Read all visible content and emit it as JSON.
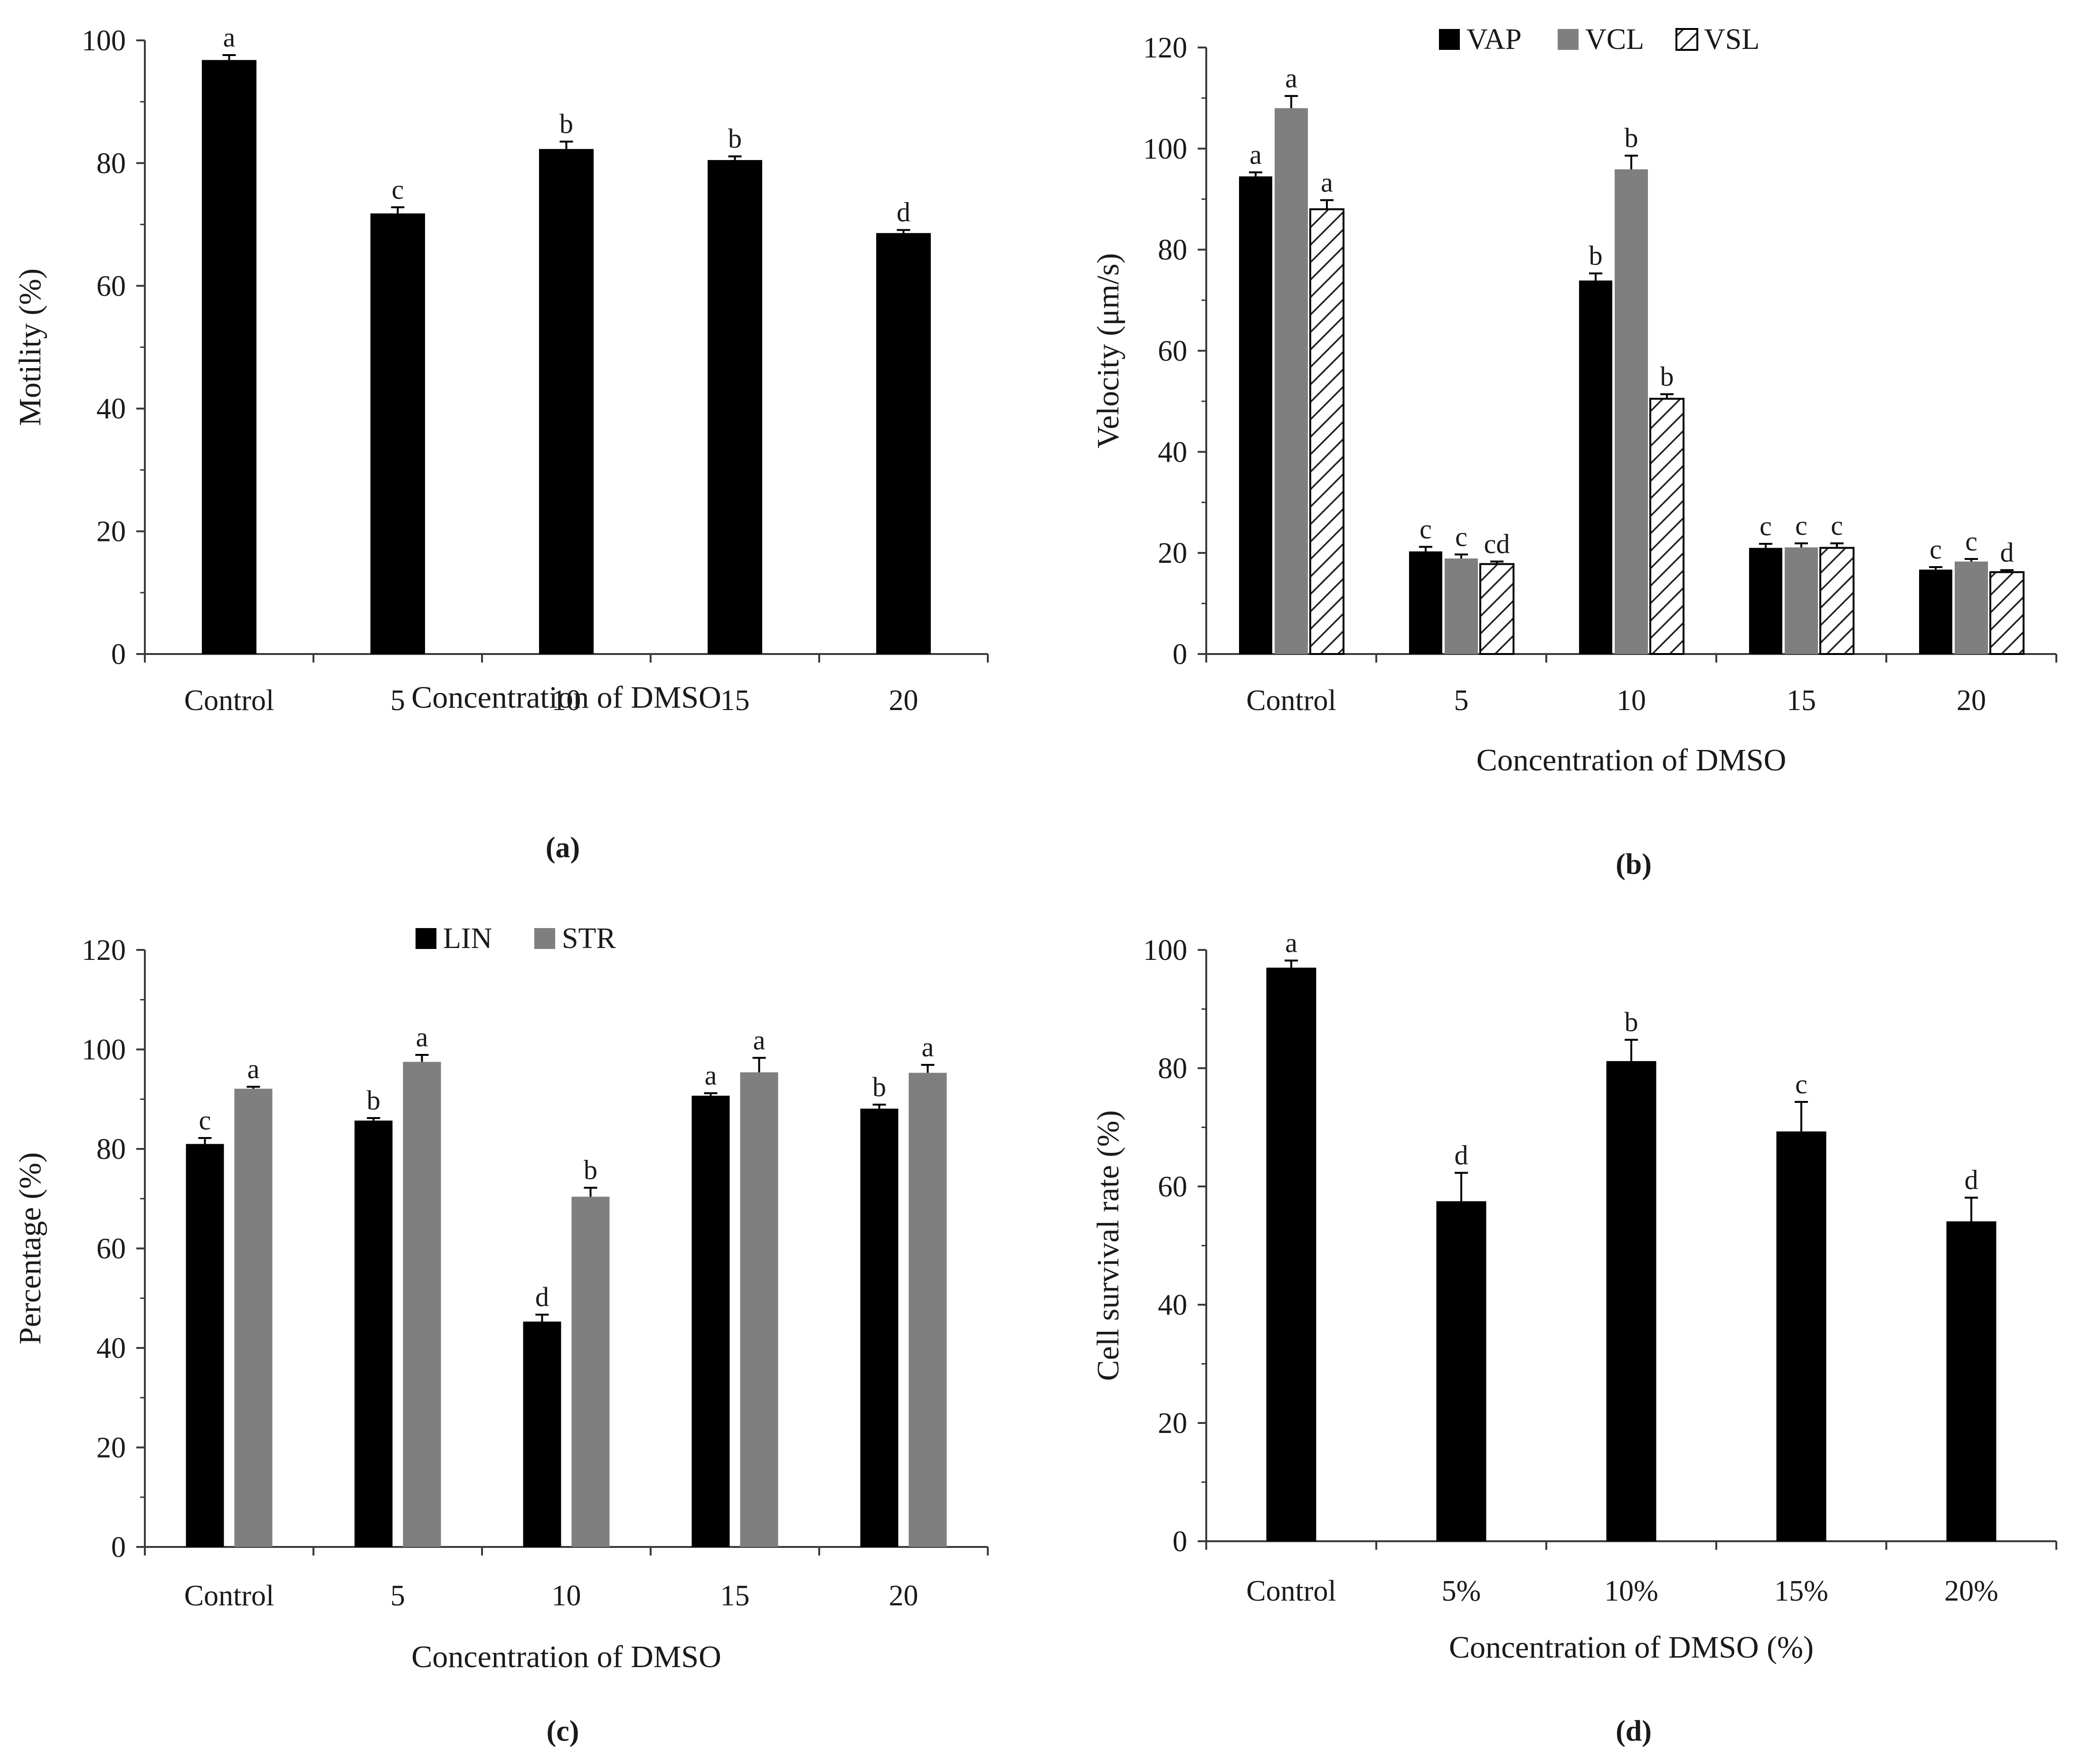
{
  "figure_colors": {
    "black": "#000000",
    "gray": "#7f7f7f",
    "hatch": "#222222",
    "axis": "#3a3a3a"
  },
  "panel_labels": {
    "a": "(a)",
    "b": "(b)",
    "c": "(c)",
    "d": "(d)"
  },
  "chart_data": [
    {
      "id": "a",
      "type": "bar",
      "title": "",
      "xlabel": "Concentration of DMSO",
      "ylabel": "Motility (%)",
      "categories": [
        "Control",
        "5",
        "10",
        "15",
        "20"
      ],
      "ylim": [
        0,
        100
      ],
      "ytick_step": 20,
      "yticks": [
        "0",
        "20",
        "40",
        "60",
        "80",
        "100"
      ],
      "legend": false,
      "series": [
        {
          "name": "Motility",
          "color": "#000000",
          "hatch": false,
          "values": [
            96.8,
            71.8,
            82.3,
            80.5,
            68.6
          ],
          "errors": [
            0.8,
            1.0,
            1.2,
            0.6,
            0.5
          ],
          "letters": [
            "a",
            "c",
            "b",
            "b",
            "d"
          ]
        }
      ]
    },
    {
      "id": "b",
      "type": "bar",
      "title": "",
      "xlabel": "Concentration of DMSO",
      "ylabel": "Velocity (μm/s)",
      "categories": [
        "Control",
        "5",
        "10",
        "15",
        "20"
      ],
      "ylim": [
        0,
        120
      ],
      "ytick_step": 20,
      "yticks": [
        "0",
        "20",
        "40",
        "60",
        "80",
        "100",
        "120"
      ],
      "legend": true,
      "series": [
        {
          "name": "VAP",
          "color": "#000000",
          "hatch": false,
          "values": [
            94.5,
            20.3,
            73.9,
            21.0,
            16.7
          ],
          "errors": [
            0.8,
            0.9,
            1.4,
            0.8,
            0.5
          ],
          "letters": [
            "a",
            "c",
            "b",
            "c",
            "c"
          ]
        },
        {
          "name": "VCL",
          "color": "#7f7f7f",
          "hatch": false,
          "values": [
            108.0,
            18.9,
            95.9,
            21.1,
            18.3
          ],
          "errors": [
            2.4,
            0.8,
            2.7,
            0.8,
            0.5
          ],
          "letters": [
            "a",
            "c",
            "b",
            "c",
            "c"
          ]
        },
        {
          "name": "VSL",
          "color": "#ffffff",
          "hatch": true,
          "values": [
            88.0,
            17.8,
            50.5,
            21.0,
            16.2
          ],
          "errors": [
            1.8,
            0.5,
            0.9,
            0.9,
            0.4
          ],
          "letters": [
            "a",
            "cd",
            "b",
            "c",
            "d"
          ]
        }
      ]
    },
    {
      "id": "c",
      "type": "bar",
      "title": "",
      "xlabel": "Concentration of DMSO",
      "ylabel": "Percentage (%)",
      "categories": [
        "Control",
        "5",
        "10",
        "15",
        "20"
      ],
      "ylim": [
        0,
        120
      ],
      "ytick_step": 20,
      "yticks": [
        "0",
        "20",
        "40",
        "60",
        "80",
        "100",
        "120"
      ],
      "legend": true,
      "series": [
        {
          "name": "LIN",
          "color": "#000000",
          "hatch": false,
          "values": [
            81.0,
            85.7,
            45.3,
            90.7,
            88.1
          ],
          "errors": [
            1.2,
            0.5,
            1.4,
            0.5,
            0.8
          ],
          "letters": [
            "c",
            "b",
            "d",
            "a",
            "b"
          ]
        },
        {
          "name": "STR",
          "color": "#7f7f7f",
          "hatch": false,
          "values": [
            92.1,
            97.5,
            70.4,
            95.4,
            95.3
          ],
          "errors": [
            0.4,
            1.4,
            1.8,
            2.9,
            1.6
          ],
          "letters": [
            "a",
            "a",
            "b",
            "a",
            "a"
          ]
        }
      ]
    },
    {
      "id": "d",
      "type": "bar",
      "title": "",
      "xlabel": "Concentration of DMSO (%)",
      "ylabel": "Cell survival rate (%)",
      "categories": [
        "Control",
        "5%",
        "10%",
        "15%",
        "20%"
      ],
      "ylim": [
        0,
        100
      ],
      "ytick_step": 20,
      "yticks": [
        "0",
        "20",
        "40",
        "60",
        "80",
        "100"
      ],
      "legend": false,
      "series": [
        {
          "name": "Cell survival rate",
          "color": "#000000",
          "hatch": false,
          "values": [
            97.0,
            57.5,
            81.2,
            69.3,
            54.1
          ],
          "errors": [
            1.2,
            4.8,
            3.6,
            5.0,
            4.0
          ],
          "letters": [
            "a",
            "d",
            "b",
            "c",
            "d"
          ]
        }
      ]
    }
  ]
}
